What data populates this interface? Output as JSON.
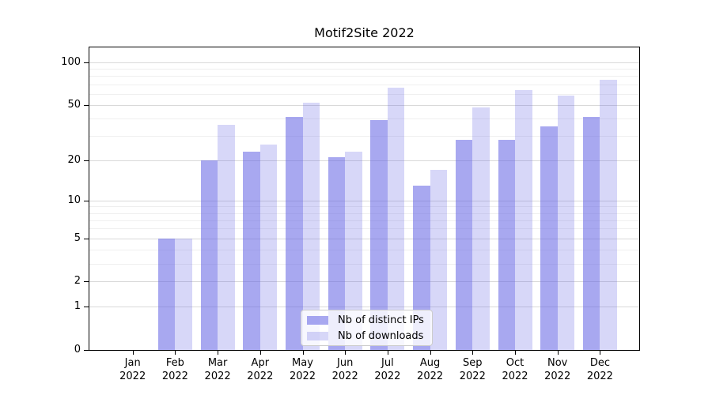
{
  "chart_data": {
    "type": "bar",
    "title": "Motif2Site 2022",
    "categories": [
      "Jan",
      "Feb",
      "Mar",
      "Apr",
      "May",
      "Jun",
      "Jul",
      "Aug",
      "Sep",
      "Oct",
      "Nov",
      "Dec"
    ],
    "category_year": "2022",
    "series": [
      {
        "name": "Nb of distinct IPs",
        "color": "rgba(95,95,228,0.54)",
        "values": [
          0,
          5,
          20,
          23,
          41,
          21,
          39,
          13,
          28,
          28,
          35,
          41
        ]
      },
      {
        "name": "Nb of downloads",
        "color": "rgba(95,95,228,0.25)",
        "values": [
          0,
          5,
          36,
          26,
          52,
          23,
          66,
          17,
          48,
          64,
          58,
          75
        ]
      }
    ],
    "yscale": "log1p",
    "y_major_ticks": [
      0,
      1,
      2,
      5,
      10,
      20,
      50,
      100
    ],
    "y_minor_ticks": [
      3,
      4,
      6,
      7,
      8,
      9,
      30,
      40,
      60,
      70,
      80,
      90
    ],
    "ylim": [
      0,
      127
    ],
    "xlabel": "",
    "ylabel": "",
    "grid": "horizontal",
    "legend_position": "lower-center"
  },
  "colors": {
    "series_dark": "rgba(95,95,228,0.54)",
    "series_light": "rgba(95,95,228,0.25)",
    "major_grid": "#d9d9d9",
    "minor_grid": "#efefef",
    "axis_line": "#000000",
    "legend_border": "#cccccc",
    "legend_background": "rgba(255,255,255,0.8)"
  }
}
